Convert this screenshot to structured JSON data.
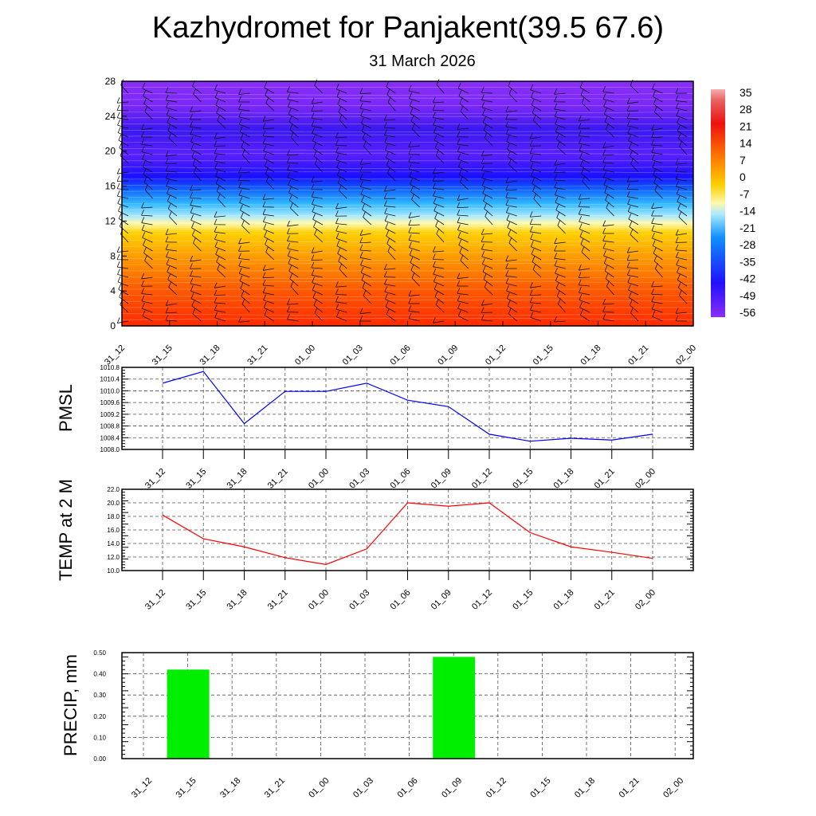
{
  "title": "Kazhydromet for Panjakent(39.5 67.6)",
  "subtitle": "31 March 2026",
  "colors": {
    "pmsl_line": "#0000ff",
    "temp_line": "#ff0000",
    "precip_bar": "#00ee00"
  },
  "chart_data": [
    {
      "type": "heatmap",
      "name": "vertical-cross-section",
      "x": [
        "31_12",
        "31_15",
        "31_18",
        "31_21",
        "01_00",
        "01_03",
        "01_06",
        "01_09",
        "01_12",
        "01_15",
        "01_18",
        "01_21",
        "02_00"
      ],
      "yticks": [
        "0",
        "4",
        "8",
        "12",
        "16",
        "20",
        "24",
        "28"
      ],
      "ylim": [
        0,
        28
      ],
      "colorbar_labels": [
        "35",
        "28",
        "21",
        "14",
        "7",
        "0",
        "-7",
        "-14",
        "-21",
        "-28",
        "-35",
        "-42",
        "-49",
        "-56"
      ],
      "overlay": "wind barbs"
    },
    {
      "type": "line",
      "name": "pmsl",
      "ylabel": "PMSL",
      "x": [
        "31_12",
        "31_15",
        "31_18",
        "31_21",
        "01_00",
        "01_03",
        "01_06",
        "01_09",
        "01_12",
        "01_15",
        "01_18",
        "01_21",
        "02_00"
      ],
      "values": [
        1010.26,
        1010.66,
        1008.88,
        1009.98,
        1009.98,
        1010.26,
        1009.68,
        1009.46,
        1008.52,
        1008.28,
        1008.38,
        1008.32,
        1008.52
      ],
      "ylim": [
        1008.0,
        1010.8
      ],
      "yticks": [
        "1008.0",
        "1008.4",
        "1008.8",
        "1009.2",
        "1009.6",
        "1010.0",
        "1010.4",
        "1010.8"
      ]
    },
    {
      "type": "line",
      "name": "temp",
      "ylabel": "TEMP at 2 M",
      "x": [
        "31_12",
        "31_15",
        "31_18",
        "31_21",
        "01_00",
        "01_03",
        "01_06",
        "01_09",
        "01_12",
        "01_15",
        "01_18",
        "01_21",
        "02_00"
      ],
      "values": [
        18.2,
        14.7,
        13.5,
        11.9,
        10.9,
        13.2,
        20.0,
        19.5,
        20.0,
        15.6,
        13.5,
        12.7,
        11.8
      ],
      "ylim": [
        10.0,
        22.0
      ],
      "yticks": [
        "10.0",
        "12.0",
        "14.0",
        "16.0",
        "18.0",
        "20.0",
        "22.0"
      ]
    },
    {
      "type": "bar",
      "name": "precip",
      "ylabel": "PRECIP, mm",
      "x": [
        "31_12",
        "31_15",
        "31_18",
        "31_21",
        "01_00",
        "01_03",
        "01_06",
        "01_09",
        "01_12",
        "01_15",
        "01_18",
        "01_21",
        "02_00"
      ],
      "values": [
        0,
        0.42,
        0,
        0,
        0,
        0,
        0,
        0.48,
        0,
        0,
        0,
        0,
        0
      ],
      "ylim": [
        0,
        0.5
      ],
      "yticks": [
        "0.00",
        "0.10",
        "0.20",
        "0.30",
        "0.40",
        "0.50"
      ]
    }
  ]
}
